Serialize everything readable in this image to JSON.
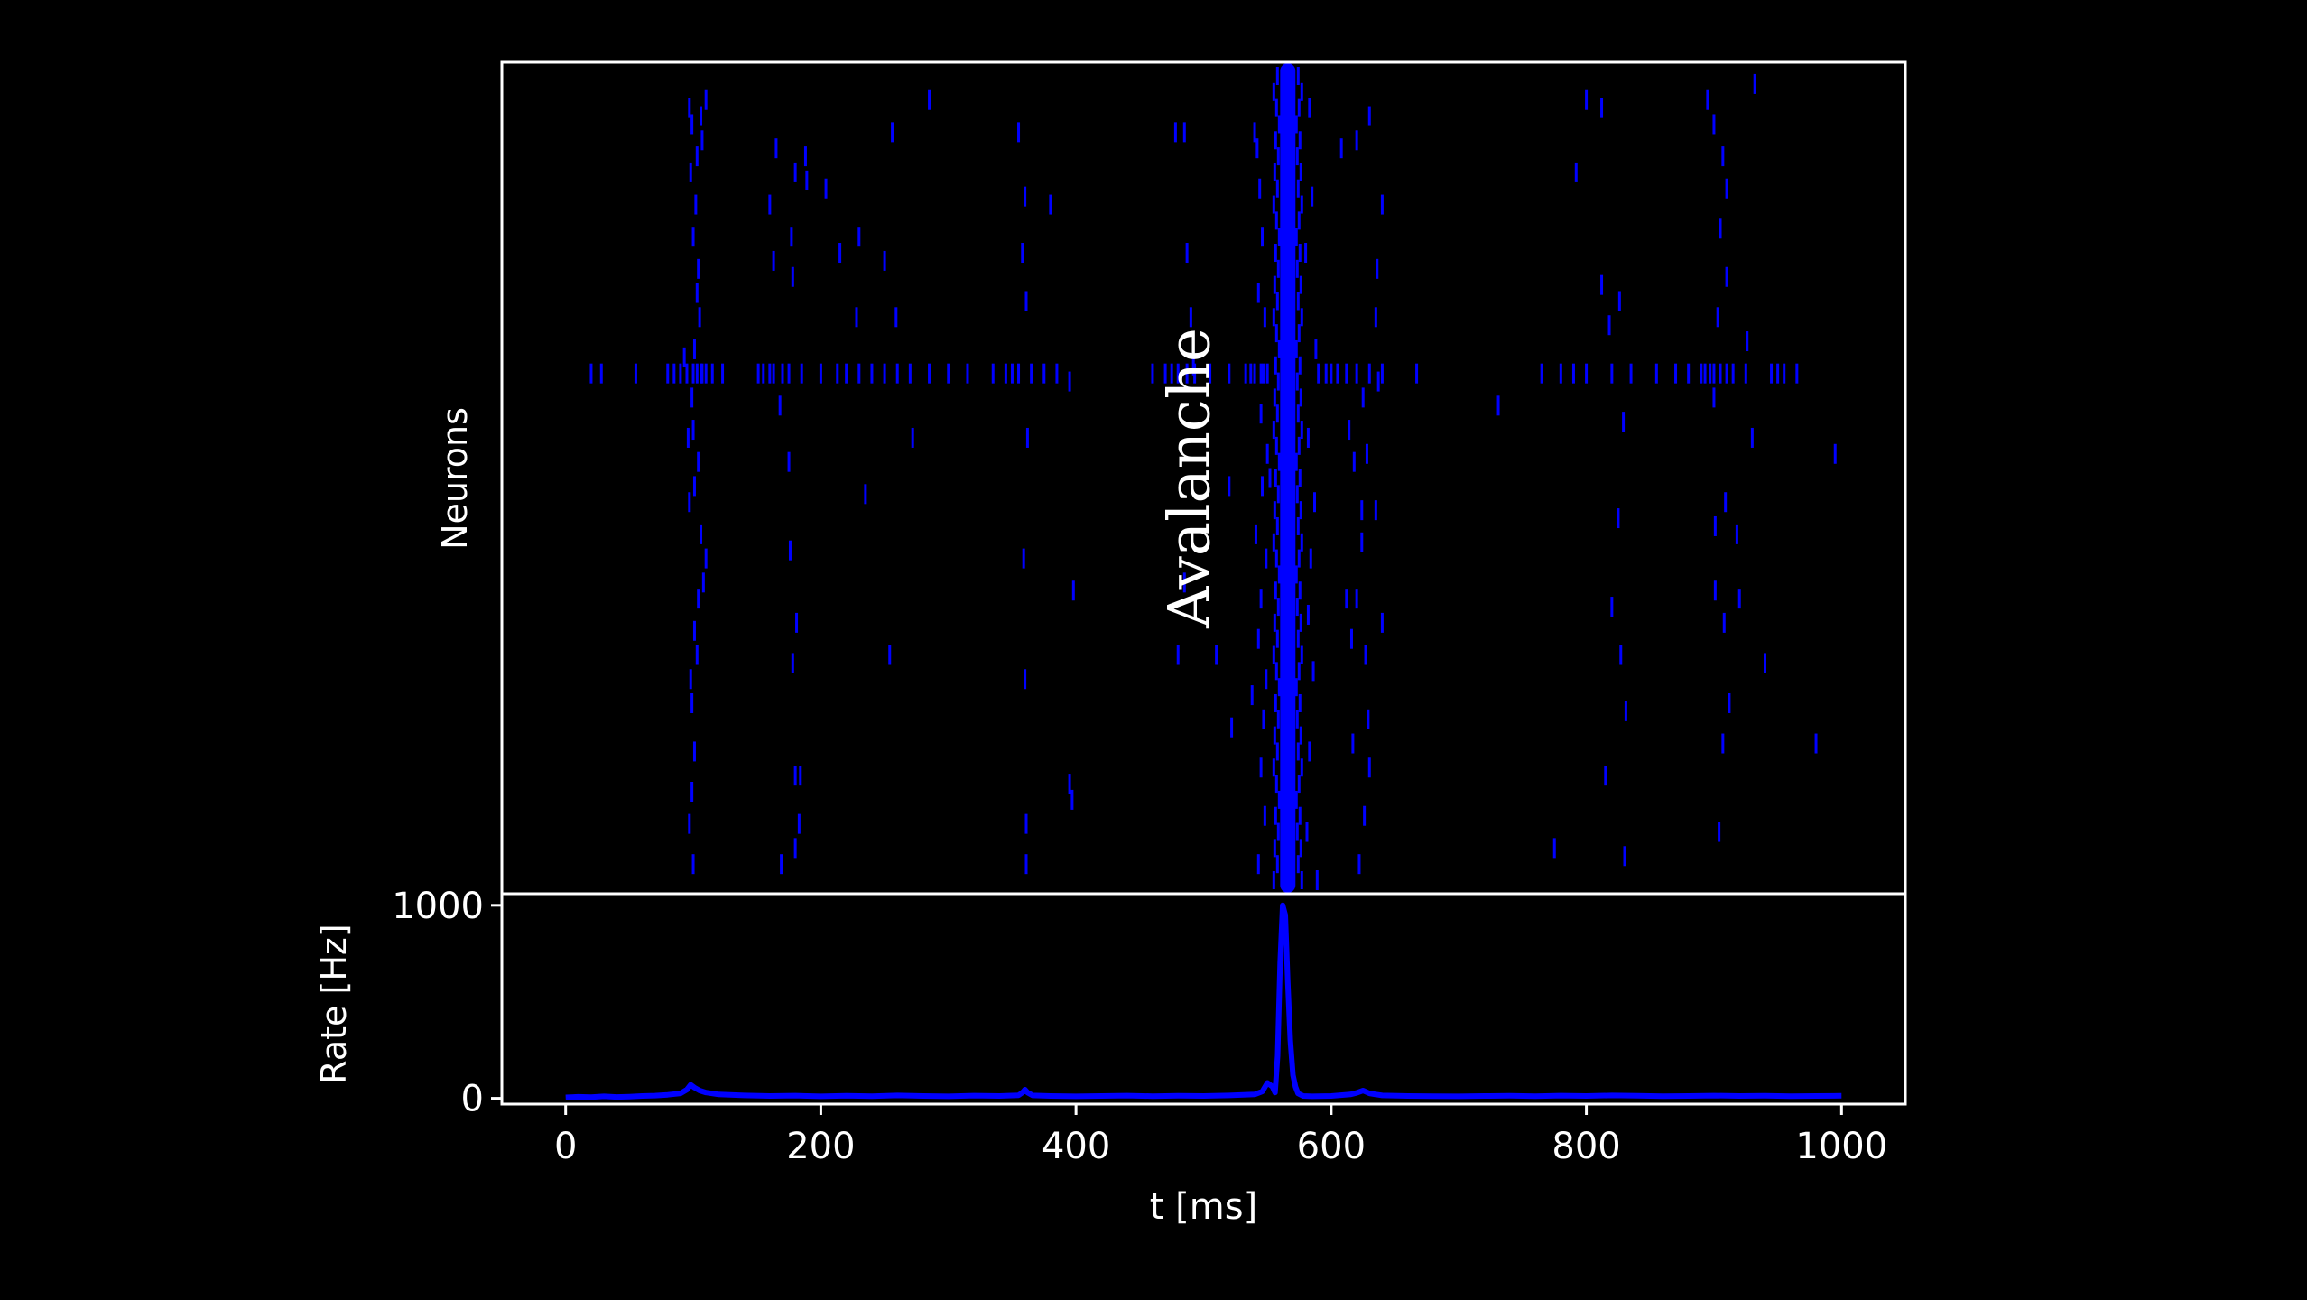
{
  "chart_data": [
    {
      "panel": "raster",
      "type": "scatter",
      "marker": "vertical tick",
      "ylabel": "Neurons",
      "xlim": [
        -50,
        1050
      ],
      "ylim": [
        0,
        100
      ],
      "yticks_shown": false,
      "annotation": {
        "text": "Avalanche",
        "x": 490,
        "y": 50,
        "rotation": 90
      },
      "avalanche_band": {
        "x_start": 560,
        "x_end": 572
      },
      "spikes": [
        [
          97,
          96
        ],
        [
          99,
          94
        ],
        [
          103,
          90
        ],
        [
          98,
          88
        ],
        [
          102,
          84
        ],
        [
          110,
          97
        ],
        [
          106,
          95
        ],
        [
          100,
          80
        ],
        [
          103,
          73
        ],
        [
          105,
          70
        ],
        [
          101,
          66
        ],
        [
          106,
          63
        ],
        [
          99,
          60
        ],
        [
          100,
          56
        ],
        [
          104,
          52
        ],
        [
          101,
          49
        ],
        [
          97,
          47
        ],
        [
          106,
          43
        ],
        [
          110,
          40
        ],
        [
          108,
          37
        ],
        [
          104,
          35
        ],
        [
          101,
          31
        ],
        [
          103,
          28
        ],
        [
          98,
          25
        ],
        [
          99,
          22
        ],
        [
          101,
          16
        ],
        [
          99,
          11
        ],
        [
          97,
          7
        ],
        [
          100,
          2
        ],
        [
          96,
          55
        ],
        [
          93,
          65
        ],
        [
          104,
          76
        ],
        [
          107,
          92
        ],
        [
          165,
          91
        ],
        [
          160,
          84
        ],
        [
          163,
          77
        ],
        [
          180,
          88
        ],
        [
          177,
          80
        ],
        [
          178,
          75
        ],
        [
          168,
          59
        ],
        [
          175,
          52
        ],
        [
          176,
          41
        ],
        [
          181,
          32
        ],
        [
          178,
          27
        ],
        [
          184,
          13
        ],
        [
          180,
          13
        ],
        [
          183,
          7
        ],
        [
          169,
          2
        ],
        [
          180,
          4
        ],
        [
          188,
          90
        ],
        [
          189,
          87
        ],
        [
          204,
          86
        ],
        [
          215,
          78
        ],
        [
          230,
          80
        ],
        [
          228,
          70
        ],
        [
          235,
          48
        ],
        [
          250,
          77
        ],
        [
          254,
          28
        ],
        [
          256,
          93
        ],
        [
          259,
          70
        ],
        [
          272,
          55
        ],
        [
          285,
          97
        ],
        [
          355,
          93
        ],
        [
          360,
          85
        ],
        [
          358,
          78
        ],
        [
          361,
          72
        ],
        [
          362,
          55
        ],
        [
          359,
          40
        ],
        [
          360,
          25
        ],
        [
          361,
          7
        ],
        [
          361,
          2
        ],
        [
          380,
          84
        ],
        [
          395,
          62
        ],
        [
          398,
          36
        ],
        [
          395,
          12
        ],
        [
          397,
          10
        ],
        [
          478,
          93
        ],
        [
          485,
          93
        ],
        [
          487,
          78
        ],
        [
          490,
          70
        ],
        [
          510,
          28
        ],
        [
          520,
          49
        ],
        [
          522,
          19
        ],
        [
          492,
          64
        ],
        [
          485,
          37
        ],
        [
          480,
          28
        ],
        [
          540,
          93
        ],
        [
          542,
          91
        ],
        [
          544,
          86
        ],
        [
          546,
          80
        ],
        [
          543,
          73
        ],
        [
          548,
          70
        ],
        [
          547,
          63
        ],
        [
          545,
          58
        ],
        [
          550,
          53
        ],
        [
          546,
          49
        ],
        [
          541,
          43
        ],
        [
          549,
          40
        ],
        [
          545,
          35
        ],
        [
          543,
          30
        ],
        [
          549,
          25
        ],
        [
          547,
          20
        ],
        [
          545,
          14
        ],
        [
          548,
          8
        ],
        [
          543,
          2
        ],
        [
          552,
          50
        ],
        [
          538,
          23
        ],
        [
          583,
          96
        ],
        [
          585,
          85
        ],
        [
          580,
          78
        ],
        [
          588,
          66
        ],
        [
          582,
          55
        ],
        [
          587,
          47
        ],
        [
          584,
          40
        ],
        [
          582,
          33
        ],
        [
          586,
          26
        ],
        [
          583,
          16
        ],
        [
          581,
          6
        ],
        [
          589,
          0
        ],
        [
          620,
          92
        ],
        [
          630,
          95
        ],
        [
          640,
          84
        ],
        [
          635,
          70
        ],
        [
          636,
          76
        ],
        [
          625,
          60
        ],
        [
          628,
          53
        ],
        [
          624,
          42
        ],
        [
          620,
          35
        ],
        [
          627,
          28
        ],
        [
          629,
          20
        ],
        [
          630,
          14
        ],
        [
          626,
          8
        ],
        [
          622,
          2
        ],
        [
          608,
          91
        ],
        [
          614,
          56
        ],
        [
          616,
          30
        ],
        [
          617,
          17
        ],
        [
          635,
          46
        ],
        [
          612,
          35
        ],
        [
          618,
          52
        ],
        [
          624,
          46
        ],
        [
          637,
          62
        ],
        [
          640,
          32
        ],
        [
          731,
          59
        ],
        [
          775,
          4
        ],
        [
          792,
          88
        ],
        [
          800,
          97
        ],
        [
          812,
          96
        ],
        [
          812,
          74
        ],
        [
          818,
          69
        ],
        [
          815,
          13
        ],
        [
          820,
          34
        ],
        [
          827,
          28
        ],
        [
          829,
          57
        ],
        [
          826,
          72
        ],
        [
          825,
          45
        ],
        [
          830,
          3
        ],
        [
          831,
          21
        ],
        [
          895,
          97
        ],
        [
          900,
          94
        ],
        [
          907,
          90
        ],
        [
          910,
          86
        ],
        [
          905,
          81
        ],
        [
          910,
          75
        ],
        [
          903,
          70
        ],
        [
          900,
          60
        ],
        [
          909,
          47
        ],
        [
          901,
          44
        ],
        [
          901,
          36
        ],
        [
          908,
          32
        ],
        [
          912,
          22
        ],
        [
          907,
          17
        ],
        [
          904,
          6
        ],
        [
          920,
          35
        ],
        [
          918,
          43
        ],
        [
          930,
          55
        ],
        [
          926,
          67
        ],
        [
          932,
          99
        ],
        [
          940,
          27
        ],
        [
          980,
          17
        ],
        [
          995,
          53
        ]
      ],
      "dense_row": {
        "y": 63,
        "x": [
          20,
          28,
          55,
          80,
          85,
          90,
          95,
          100,
          103,
          107,
          110,
          115,
          123,
          151,
          155,
          160,
          163,
          170,
          175,
          185,
          200,
          213,
          220,
          230,
          240,
          250,
          260,
          270,
          285,
          300,
          315,
          335,
          345,
          350,
          355,
          365,
          375,
          385,
          460,
          470,
          475,
          480,
          487,
          493,
          505,
          520,
          533,
          537,
          540,
          545,
          550,
          590,
          596,
          600,
          605,
          612,
          620,
          630,
          640,
          667,
          765,
          780,
          790,
          800,
          820,
          835,
          855,
          870,
          880,
          890,
          893,
          897,
          900,
          905,
          910,
          915,
          925,
          945,
          950,
          955,
          965
        ]
      }
    },
    {
      "panel": "rate",
      "type": "line",
      "xlabel": "t [ms]",
      "ylabel": "Rate [Hz]",
      "xlim": [
        -50,
        1050
      ],
      "ylim": [
        -30,
        1060
      ],
      "xticks": [
        0,
        200,
        400,
        600,
        800,
        1000
      ],
      "yticks": [
        0,
        1000
      ],
      "series": [
        {
          "color": "#0000ff",
          "x": [
            0,
            10,
            20,
            30,
            40,
            50,
            60,
            70,
            80,
            90,
            95,
            98,
            101,
            105,
            110,
            120,
            140,
            160,
            180,
            200,
            220,
            240,
            260,
            280,
            300,
            320,
            340,
            355,
            358,
            360,
            362,
            366,
            380,
            400,
            420,
            440,
            460,
            480,
            500,
            520,
            540,
            546,
            550,
            554,
            556,
            558,
            560,
            562,
            564,
            566,
            568,
            570,
            572,
            574,
            578,
            585,
            600,
            615,
            620,
            625,
            630,
            640,
            660,
            680,
            700,
            720,
            740,
            760,
            780,
            800,
            820,
            840,
            860,
            880,
            900,
            920,
            940,
            960,
            980,
            1000
          ],
          "values": [
            5,
            8,
            6,
            10,
            7,
            9,
            12,
            14,
            18,
            25,
            45,
            70,
            55,
            40,
            30,
            20,
            15,
            12,
            14,
            10,
            13,
            11,
            15,
            12,
            10,
            14,
            12,
            16,
            30,
            45,
            30,
            15,
            12,
            10,
            12,
            14,
            11,
            13,
            12,
            15,
            20,
            35,
            80,
            60,
            30,
            220,
            700,
            1000,
            950,
            600,
            300,
            120,
            60,
            25,
            12,
            10,
            12,
            20,
            28,
            40,
            25,
            15,
            12,
            11,
            10,
            12,
            13,
            11,
            14,
            12,
            15,
            13,
            11,
            12,
            14,
            12,
            13,
            11,
            12,
            13
          ]
        }
      ]
    }
  ]
}
